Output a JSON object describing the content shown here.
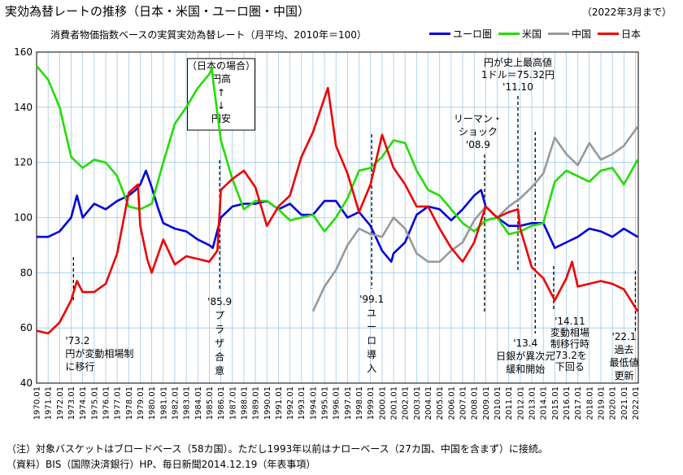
{
  "header": {
    "title": "実効為替レートの推移（日本・米国・ユーロ圏・中国）",
    "range_note": "（2022年3月まで）",
    "subtitle": "消費者物価指数ベースの実質実効為替レート（月平均、2010年＝100）"
  },
  "notes": {
    "line1": "（注）対象バスケットはブロードベース（58カ国）。ただし1993年以前はナローベース（27カ国、中国を含まず）に接続。",
    "line2": "（資料）BIS（国際決済銀行）HP、毎日新聞2014.12.19（年表事項）"
  },
  "chart_data": {
    "type": "line",
    "title": "",
    "xlabel": "",
    "ylabel": "",
    "ylim": [
      40,
      160
    ],
    "yticks": [
      40,
      60,
      80,
      100,
      120,
      140,
      160
    ],
    "xlim": [
      1970.0,
      2022.25
    ],
    "grid": true,
    "legend_position": "top-right",
    "x_tick_labels": [
      "1970.01",
      "1971.01",
      "1972.01",
      "1973.01",
      "1974.01",
      "1975.01",
      "1976.01",
      "1977.01",
      "1978.01",
      "1979.01",
      "1980.01",
      "1981.01",
      "1982.01",
      "1983.01",
      "1984.01",
      "1985.01",
      "1986.01",
      "1987.01",
      "1988.01",
      "1989.01",
      "1990.01",
      "1991.01",
      "1992.01",
      "1993.01",
      "1994.01",
      "1995.01",
      "1996.01",
      "1997.01",
      "1998.01",
      "1999.01",
      "2000.01",
      "2001.01",
      "2002.01",
      "2003.01",
      "2004.01",
      "2005.01",
      "2006.01",
      "2007.01",
      "2008.01",
      "2009.01",
      "2010.01",
      "2011.01",
      "2012.01",
      "2013.01",
      "2014.01",
      "2015.01",
      "2016.01",
      "2017.01",
      "2018.01",
      "2019.01",
      "2020.01",
      "2021.01",
      "2022.01"
    ],
    "series": [
      {
        "name": "ユーロ圏",
        "color": "#0000dd",
        "x": [
          1970,
          1971,
          1972,
          1973,
          1973.5,
          1974,
          1975,
          1976,
          1977,
          1978,
          1978.6,
          1979,
          1979.5,
          1980,
          1980.5,
          1981,
          1982,
          1983,
          1984,
          1985,
          1985.3,
          1986,
          1987,
          1988,
          1989,
          1990,
          1991,
          1992,
          1993,
          1994,
          1995,
          1996,
          1997,
          1998,
          1999,
          2000,
          2000.8,
          2001,
          2002,
          2003,
          2004,
          2005,
          2006,
          2007,
          2008,
          2008.6,
          2009,
          2010,
          2011,
          2012,
          2013,
          2014,
          2015,
          2016,
          2017,
          2018,
          2019,
          2020,
          2021,
          2022.2
        ],
        "y": [
          93,
          93,
          95,
          100,
          108,
          100,
          105,
          103,
          106,
          108,
          110,
          112,
          117,
          111,
          104,
          98,
          96,
          95,
          92,
          90,
          89,
          100,
          104,
          105,
          105,
          106,
          103,
          105,
          101,
          101,
          106,
          106,
          100,
          102,
          97,
          88,
          84,
          87,
          91,
          101,
          104,
          103,
          99,
          103,
          108,
          110,
          104,
          100,
          97,
          97,
          98,
          98,
          89,
          91,
          93,
          96,
          95,
          93,
          96,
          93
        ]
      },
      {
        "name": "米国",
        "color": "#22dd00",
        "x": [
          1970,
          1971,
          1972,
          1973,
          1974,
          1975,
          1976,
          1977,
          1978,
          1979,
          1980,
          1981,
          1982,
          1983,
          1984,
          1985,
          1985.2,
          1986,
          1987,
          1988,
          1989,
          1990,
          1991,
          1992,
          1993,
          1994,
          1995,
          1996,
          1997,
          1998,
          1999,
          2000,
          2001,
          2002,
          2003,
          2004,
          2005,
          2006,
          2007,
          2008,
          2009,
          2010,
          2011,
          2012,
          2013,
          2014,
          2015,
          2016,
          2017,
          2018,
          2019,
          2020,
          2021,
          2022.2
        ],
        "y": [
          155,
          150,
          140,
          122,
          118,
          121,
          120,
          115,
          104,
          103,
          105,
          120,
          134,
          140,
          147,
          152,
          154,
          128,
          114,
          103,
          106,
          106,
          103,
          99,
          100,
          101,
          95,
          100,
          107,
          117,
          118,
          122,
          128,
          127,
          117,
          110,
          108,
          103,
          98,
          95,
          99,
          100,
          94,
          95,
          97,
          98,
          113,
          117,
          115,
          113,
          117,
          118,
          112,
          121
        ]
      },
      {
        "name": "中国",
        "color": "#999999",
        "x": [
          1994,
          1995,
          1996,
          1997,
          1998,
          1999,
          2000,
          2001,
          2002,
          2003,
          2004,
          2005,
          2006,
          2007,
          2008,
          2009,
          2010,
          2011,
          2012,
          2013,
          2014,
          2015,
          2016,
          2017,
          2018,
          2019,
          2020,
          2021,
          2022.2
        ],
        "y": [
          66,
          75,
          81,
          90,
          96,
          94,
          93,
          100,
          96,
          87,
          84,
          84,
          88,
          91,
          99,
          104,
          100,
          104,
          107,
          111,
          116,
          129,
          123,
          119,
          127,
          121,
          123,
          126,
          133
        ]
      },
      {
        "name": "日本",
        "color": "#ee0000",
        "x": [
          1970,
          1971,
          1972,
          1973,
          1973.5,
          1974,
          1975,
          1976,
          1977,
          1978,
          1978.8,
          1979,
          1979.6,
          1980,
          1981,
          1982,
          1983,
          1984,
          1985,
          1985.7,
          1986,
          1987,
          1988,
          1989,
          1990,
          1991,
          1992,
          1993,
          1994,
          1995.3,
          1995.6,
          1996,
          1997,
          1998,
          1999,
          2000,
          2001,
          2002,
          2003,
          2004,
          2005,
          2006,
          2007,
          2008,
          2009,
          2010,
          2011,
          2011.8,
          2012,
          2013,
          2014,
          2015,
          2016,
          2016.5,
          2017,
          2018,
          2019,
          2020,
          2021,
          2022.2
        ],
        "y": [
          59,
          58,
          62,
          70,
          77,
          73,
          73,
          76,
          87,
          109,
          112,
          97,
          85,
          80,
          92,
          83,
          86,
          85,
          84,
          88,
          110,
          114,
          117,
          111,
          97,
          104,
          108,
          122,
          131,
          147,
          138,
          126,
          116,
          102,
          112,
          130,
          118,
          112,
          104,
          104,
          96,
          89,
          84,
          91,
          104,
          100,
          102,
          103,
          96,
          82,
          78,
          70,
          78,
          84,
          75,
          76,
          77,
          76,
          74,
          66
        ]
      }
    ],
    "annotations": [
      {
        "x": 1973.2,
        "lines": [
          "'73.2",
          "円が変動相場制",
          "に移行"
        ]
      },
      {
        "x": 1985.9,
        "lines": [
          "'85.9",
          "プ",
          "ラ",
          "ザ",
          "合",
          "意"
        ]
      },
      {
        "x": 1999.1,
        "lines": [
          "'99.1",
          "ユ",
          "ー",
          "ロ",
          "導",
          "入"
        ]
      },
      {
        "x": 2008.9,
        "lines": [
          "リーマン・",
          "ショック",
          "'08.9"
        ]
      },
      {
        "x": 2011.8,
        "lines": [
          "円が史上最高値",
          "1ドル＝75.32円",
          "'11.10"
        ]
      },
      {
        "x": 2013.3,
        "lines": [
          "'13.4",
          "日銀が異次元",
          "緩和開始"
        ]
      },
      {
        "x": 2014.9,
        "lines": [
          "'14.11",
          "変動相場",
          "制移行時",
          "'73.2を",
          "下回る"
        ]
      },
      {
        "x": 2022.0,
        "lines": [
          "'22.1",
          "過去",
          "最低値",
          "更新"
        ]
      }
    ],
    "inset_box": {
      "lines": [
        "（日本の場合）",
        "円高",
        "↑",
        "↓",
        "円安"
      ]
    }
  }
}
